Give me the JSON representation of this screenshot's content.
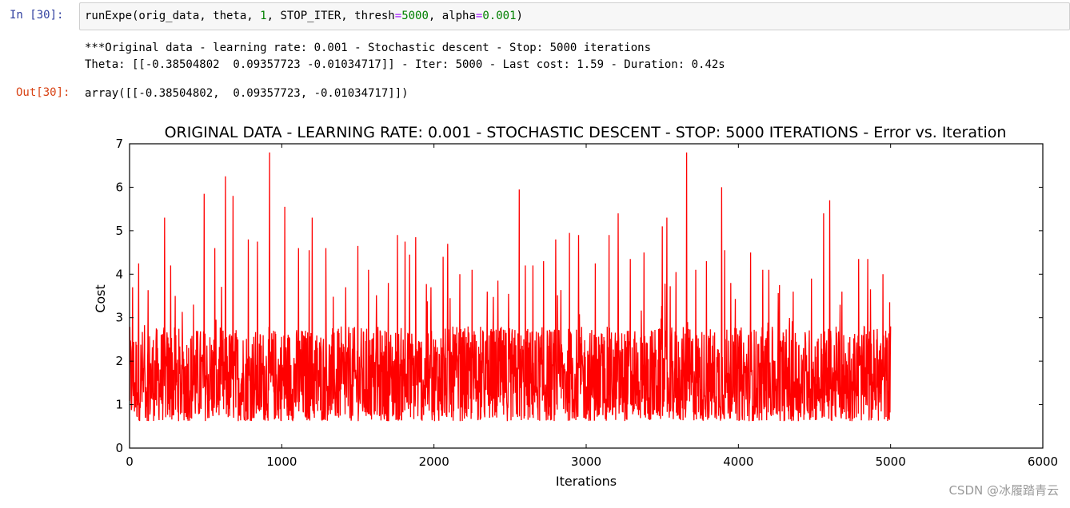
{
  "cell": {
    "in_prompt": "In  [30]:",
    "out_prompt": "Out[30]:",
    "code": {
      "func": "runExpe(orig_data, theta, ",
      "arg1": "1",
      "mid": ", STOP_ITER, thresh",
      "eq1": "=",
      "thresh": "5000",
      "sep": ", alpha",
      "eq2": "=",
      "alpha": "0.001",
      "close": ")"
    },
    "stdout_line1": "***Original data - learning rate: 0.001 - Stochastic descent - Stop: 5000 iterations",
    "stdout_line2": "Theta: [[-0.38504802  0.09357723 -0.01034717]] - Iter: 5000 - Last cost: 1.59 - Duration: 0.42s",
    "output": "array([[-0.38504802,  0.09357723, -0.01034717]])"
  },
  "chart_data": {
    "type": "line",
    "title": "ORIGINAL DATA - LEARNING RATE: 0.001 - STOCHASTIC DESCENT - STOP: 5000 ITERATIONS - Error vs. Iteration",
    "xlabel": "Iterations",
    "ylabel": "Cost",
    "xlim": [
      0,
      6000
    ],
    "ylim": [
      0,
      7
    ],
    "xticks": [
      "0",
      "1000",
      "2000",
      "3000",
      "4000",
      "5000",
      "6000"
    ],
    "yticks": [
      "0",
      "1",
      "2",
      "3",
      "4",
      "5",
      "6",
      "7"
    ],
    "grid": false,
    "color": "#ff0000",
    "series": [
      {
        "values_note_x_start": 0,
        "x_end": 5000,
        "noise_range": [
          0.62,
          2.8
        ],
        "peaks": [
          [
            20,
            3.7
          ],
          [
            60,
            4.25
          ],
          [
            230,
            5.3
          ],
          [
            270,
            4.2
          ],
          [
            300,
            3.5
          ],
          [
            420,
            3.3
          ],
          [
            490,
            5.85
          ],
          [
            560,
            4.6
          ],
          [
            630,
            6.25
          ],
          [
            680,
            5.8
          ],
          [
            780,
            4.8
          ],
          [
            840,
            4.75
          ],
          [
            920,
            6.8
          ],
          [
            1020,
            5.55
          ],
          [
            1110,
            4.6
          ],
          [
            1180,
            4.55
          ],
          [
            1200,
            5.3
          ],
          [
            1290,
            4.6
          ],
          [
            1420,
            3.7
          ],
          [
            1500,
            4.65
          ],
          [
            1570,
            4.1
          ],
          [
            1700,
            3.8
          ],
          [
            1760,
            4.9
          ],
          [
            1810,
            4.75
          ],
          [
            1840,
            4.45
          ],
          [
            1880,
            4.85
          ],
          [
            1980,
            3.7
          ],
          [
            2060,
            4.4
          ],
          [
            2090,
            4.7
          ],
          [
            2170,
            4.0
          ],
          [
            2250,
            4.1
          ],
          [
            2350,
            3.6
          ],
          [
            2420,
            3.85
          ],
          [
            2560,
            5.95
          ],
          [
            2600,
            4.2
          ],
          [
            2650,
            4.2
          ],
          [
            2720,
            4.3
          ],
          [
            2800,
            4.8
          ],
          [
            2890,
            4.95
          ],
          [
            2950,
            4.9
          ],
          [
            3060,
            4.25
          ],
          [
            3150,
            4.9
          ],
          [
            3210,
            5.4
          ],
          [
            3290,
            4.35
          ],
          [
            3380,
            4.5
          ],
          [
            3500,
            5.1
          ],
          [
            3530,
            5.3
          ],
          [
            3590,
            4.05
          ],
          [
            3660,
            6.8
          ],
          [
            3720,
            4.1
          ],
          [
            3790,
            4.3
          ],
          [
            3890,
            6.0
          ],
          [
            3910,
            4.55
          ],
          [
            3950,
            3.8
          ],
          [
            4080,
            4.5
          ],
          [
            4160,
            4.1
          ],
          [
            4200,
            4.1
          ],
          [
            4270,
            3.75
          ],
          [
            4360,
            3.6
          ],
          [
            4480,
            3.9
          ],
          [
            4560,
            5.4
          ],
          [
            4600,
            5.7
          ],
          [
            4680,
            3.6
          ],
          [
            4790,
            4.35
          ],
          [
            4850,
            4.35
          ],
          [
            4950,
            4.0
          ],
          [
            5000,
            2.8
          ]
        ]
      }
    ]
  },
  "watermark": "CSDN @冰履踏青云"
}
